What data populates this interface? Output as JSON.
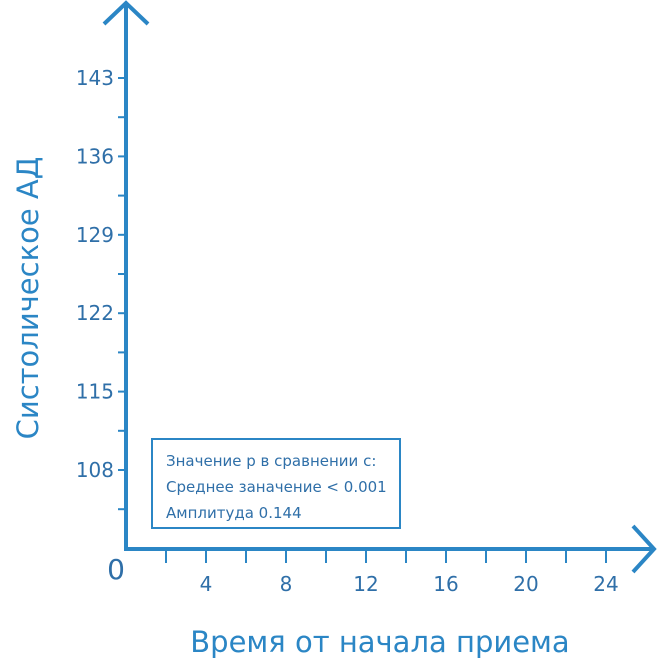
{
  "chart_data": {
    "type": "scatter",
    "xlabel": "Время от начала приема",
    "ylabel": "Систолическое АД",
    "x_ticks": [
      4,
      8,
      12,
      16,
      20,
      24
    ],
    "y_ticks": [
      108,
      115,
      122,
      129,
      136,
      143
    ],
    "origin_label": "0",
    "xlim": [
      0,
      26
    ],
    "ylim": [
      101,
      147
    ],
    "series": [],
    "grid": false
  },
  "annotation": {
    "title": "Значение р в сравнении с:",
    "line1": "Среднее заначение < 0.001",
    "line2": "Амплитуда 0.144"
  },
  "colors": {
    "axis": "#2b86c5",
    "text": "#2f6fa8"
  }
}
